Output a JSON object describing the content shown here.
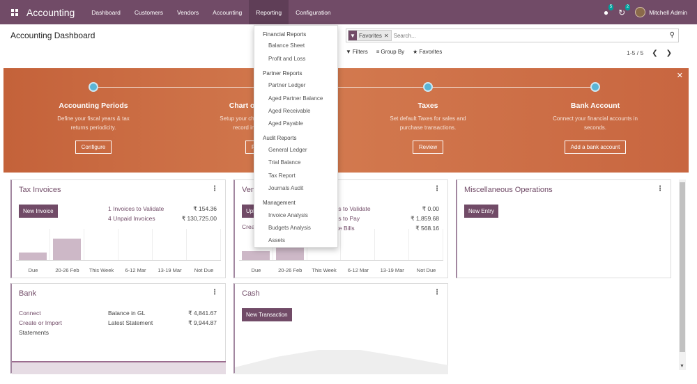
{
  "navbar": {
    "brand": "Accounting",
    "menu": [
      "Dashboard",
      "Customers",
      "Vendors",
      "Accounting",
      "Reporting",
      "Configuration"
    ],
    "chat_badge": "5",
    "activity_badge": "2",
    "user": "Mitchell Admin"
  },
  "control": {
    "title": "Accounting Dashboard",
    "facet": "Favorites",
    "search_placeholder": "Search...",
    "filters": "Filters",
    "group_by": "Group By",
    "favorites": "Favorites",
    "pager": "1-5 / 5"
  },
  "banner": {
    "steps": [
      {
        "title": "Accounting Periods",
        "desc1": "Define your fiscal years & tax",
        "desc2": "returns periodicity.",
        "button": "Configure"
      },
      {
        "title": "Chart of Accounts",
        "desc1": "Setup your chart of accounts and",
        "desc2": "record initial balances.",
        "button": "Review"
      },
      {
        "title": "Taxes",
        "desc1": "Set default Taxes for sales and",
        "desc2": "purchase transactions.",
        "button": "Review"
      },
      {
        "title": "Bank Account",
        "desc1": "Connect your financial accounts in",
        "desc2": "seconds.",
        "button": "Add a bank account"
      }
    ]
  },
  "cards": {
    "tax_invoices": {
      "title": "Tax Invoices",
      "button": "New Invoice",
      "links": [
        "1 Invoices to Validate",
        "4 Unpaid Invoices"
      ],
      "amounts": [
        "₹ 154.36",
        "₹ 130,725.00"
      ],
      "xlabels": [
        "Due",
        "20-26 Feb",
        "This Week",
        "6-12 Mar",
        "13-19 Mar",
        "Not Due"
      ],
      "bars": [
        0.25,
        0.7,
        0,
        0,
        0,
        0
      ]
    },
    "vendor_bills": {
      "title": "Vendor Bills",
      "button": "Upload",
      "create": "Create Manually",
      "links": [
        "1 Bills to Validate",
        "2 Bills to Pay",
        "3 Late Bills"
      ],
      "amounts": [
        "₹ 0.00",
        "₹ 1,859.68",
        "₹ 568.16"
      ],
      "xlabels": [
        "Due",
        "20-26 Feb",
        "This Week",
        "6-12 Mar",
        "13-19 Mar",
        "Not Due"
      ],
      "bars": [
        0.3,
        0.7,
        0,
        0,
        0,
        0
      ]
    },
    "misc": {
      "title": "Miscellaneous Operations",
      "button": "New Entry"
    },
    "bank": {
      "title": "Bank",
      "connect": "Connect",
      "create_import": "Create or Import",
      "statements": "Statements",
      "balance_label": "Balance in GL",
      "latest_label": "Latest Statement",
      "balance": "₹ 4,841.67",
      "latest": "₹ 9,944.87"
    },
    "cash": {
      "title": "Cash",
      "button": "New Transaction"
    }
  },
  "reporting_menu": {
    "financial": "Financial Reports",
    "balance_sheet": "Balance Sheet",
    "profit_loss": "Profit and Loss",
    "partner": "Partner Reports",
    "partner_ledger": "Partner Ledger",
    "aged_partner": "Aged Partner Balance",
    "aged_receivable": "Aged Receivable",
    "aged_payable": "Aged Payable",
    "audit": "Audit Reports",
    "general_ledger": "General Ledger",
    "trial_balance": "Trial Balance",
    "tax_report": "Tax Report",
    "journals_audit": "Journals Audit",
    "management": "Management",
    "invoice_analysis": "Invoice Analysis",
    "budgets_analysis": "Budgets Analysis",
    "assets": "Assets"
  },
  "colors": {
    "brand": "#714b67",
    "banner": "#c86640",
    "step_dot": "#5ab5d6"
  }
}
